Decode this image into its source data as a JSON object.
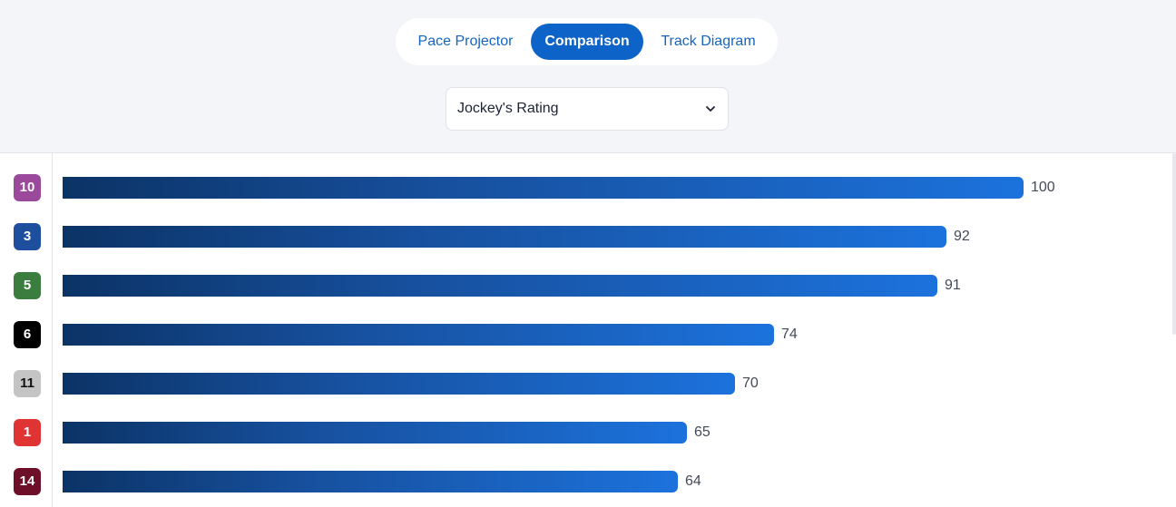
{
  "tabs": [
    {
      "label": "Pace Projector",
      "active": false
    },
    {
      "label": "Comparison",
      "active": true
    },
    {
      "label": "Track Diagram",
      "active": false
    }
  ],
  "metric_select": {
    "value": "Jockey's Rating",
    "icon": "chevron-down-icon"
  },
  "colors": {
    "accent": "#0d63c8",
    "bar_start": "#0b3366",
    "bar_end": "#1c72dc"
  },
  "chart_data": {
    "type": "bar",
    "orientation": "horizontal",
    "xlim": [
      0,
      100
    ],
    "categories": [
      "10",
      "3",
      "5",
      "6",
      "11",
      "1",
      "14"
    ],
    "values": [
      100,
      92,
      91,
      74,
      70,
      65,
      64
    ],
    "badge_colors": [
      "#9b4a9b",
      "#1e4f9e",
      "#3a7d3e",
      "#000000",
      "#c4c4c4",
      "#e03434",
      "#6e0f2a"
    ],
    "badge_text_colors": [
      "#ffffff",
      "#ffffff",
      "#ffffff",
      "#ffffff",
      "#111111",
      "#ffffff",
      "#ffffff"
    ]
  }
}
